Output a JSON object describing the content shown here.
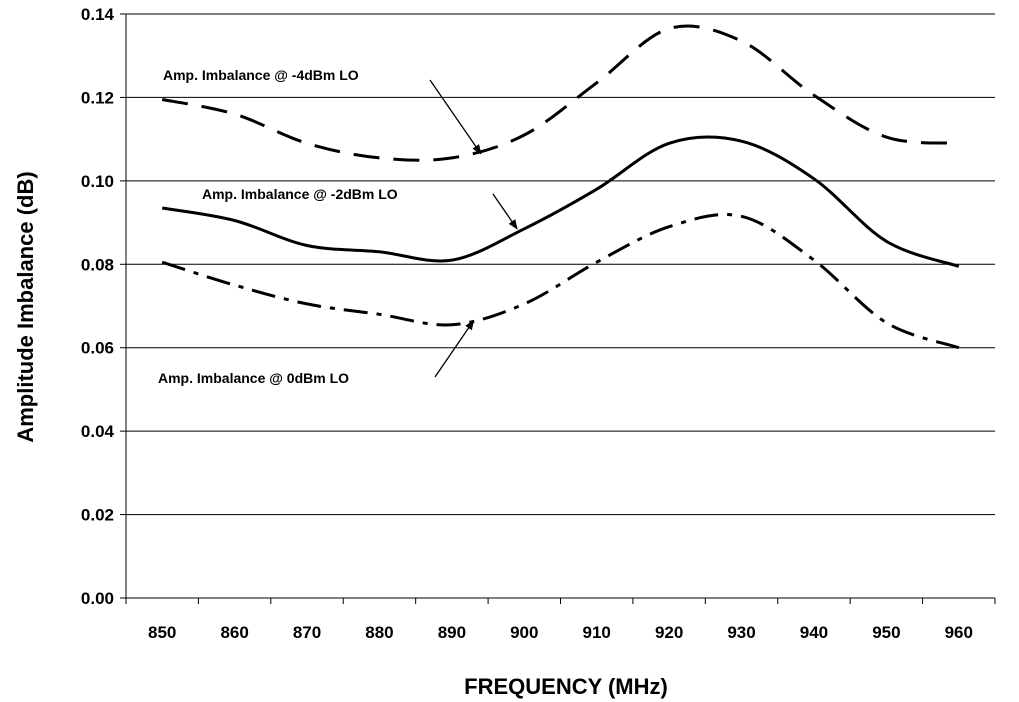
{
  "chart_data": {
    "type": "line",
    "title": "",
    "xlabel": "FREQUENCY (MHz)",
    "ylabel": "Amplitude Imbalance (dB)",
    "xlim": [
      845,
      965
    ],
    "ylim": [
      0,
      0.14
    ],
    "x_ticks": [
      "850",
      "860",
      "870",
      "880",
      "890",
      "900",
      "910",
      "920",
      "930",
      "940",
      "950",
      "960"
    ],
    "y_ticks": [
      "0.00",
      "0.02",
      "0.04",
      "0.06",
      "0.08",
      "0.10",
      "0.12",
      "0.14"
    ],
    "grid": "horizontal",
    "legend": "none",
    "x": [
      850,
      860,
      870,
      880,
      890,
      900,
      910,
      920,
      930,
      940,
      950,
      960
    ],
    "series": [
      {
        "name": "Amp. Imbalance @ -4dBm LO",
        "style": "dashed",
        "values": [
          0.1195,
          0.116,
          0.109,
          0.1055,
          0.1055,
          0.111,
          0.1235,
          0.1365,
          0.1335,
          0.1205,
          0.1105,
          0.109
        ]
      },
      {
        "name": "Amp. Imbalance @ -2dBm LO",
        "style": "solid",
        "values": [
          0.0935,
          0.0905,
          0.0845,
          0.083,
          0.081,
          0.0885,
          0.098,
          0.109,
          0.1095,
          0.1005,
          0.0855,
          0.0795
        ]
      },
      {
        "name": "Amp. Imbalance @ 0dBm LO",
        "style": "dash-dot",
        "values": [
          0.0805,
          0.075,
          0.0705,
          0.068,
          0.0655,
          0.0705,
          0.0805,
          0.089,
          0.0915,
          0.081,
          0.066,
          0.06
        ]
      }
    ],
    "annotations": [
      {
        "text": "Amp. Imbalance @ -4dBm LO",
        "series": 0,
        "x": 894,
        "y": 0.1065
      },
      {
        "text": "Amp. Imbalance @ -2dBm LO",
        "series": 1,
        "x": 899,
        "y": 0.0885
      },
      {
        "text": "Amp. Imbalance @ 0dBm LO",
        "series": 2,
        "x": 893,
        "y": 0.0665
      }
    ]
  }
}
